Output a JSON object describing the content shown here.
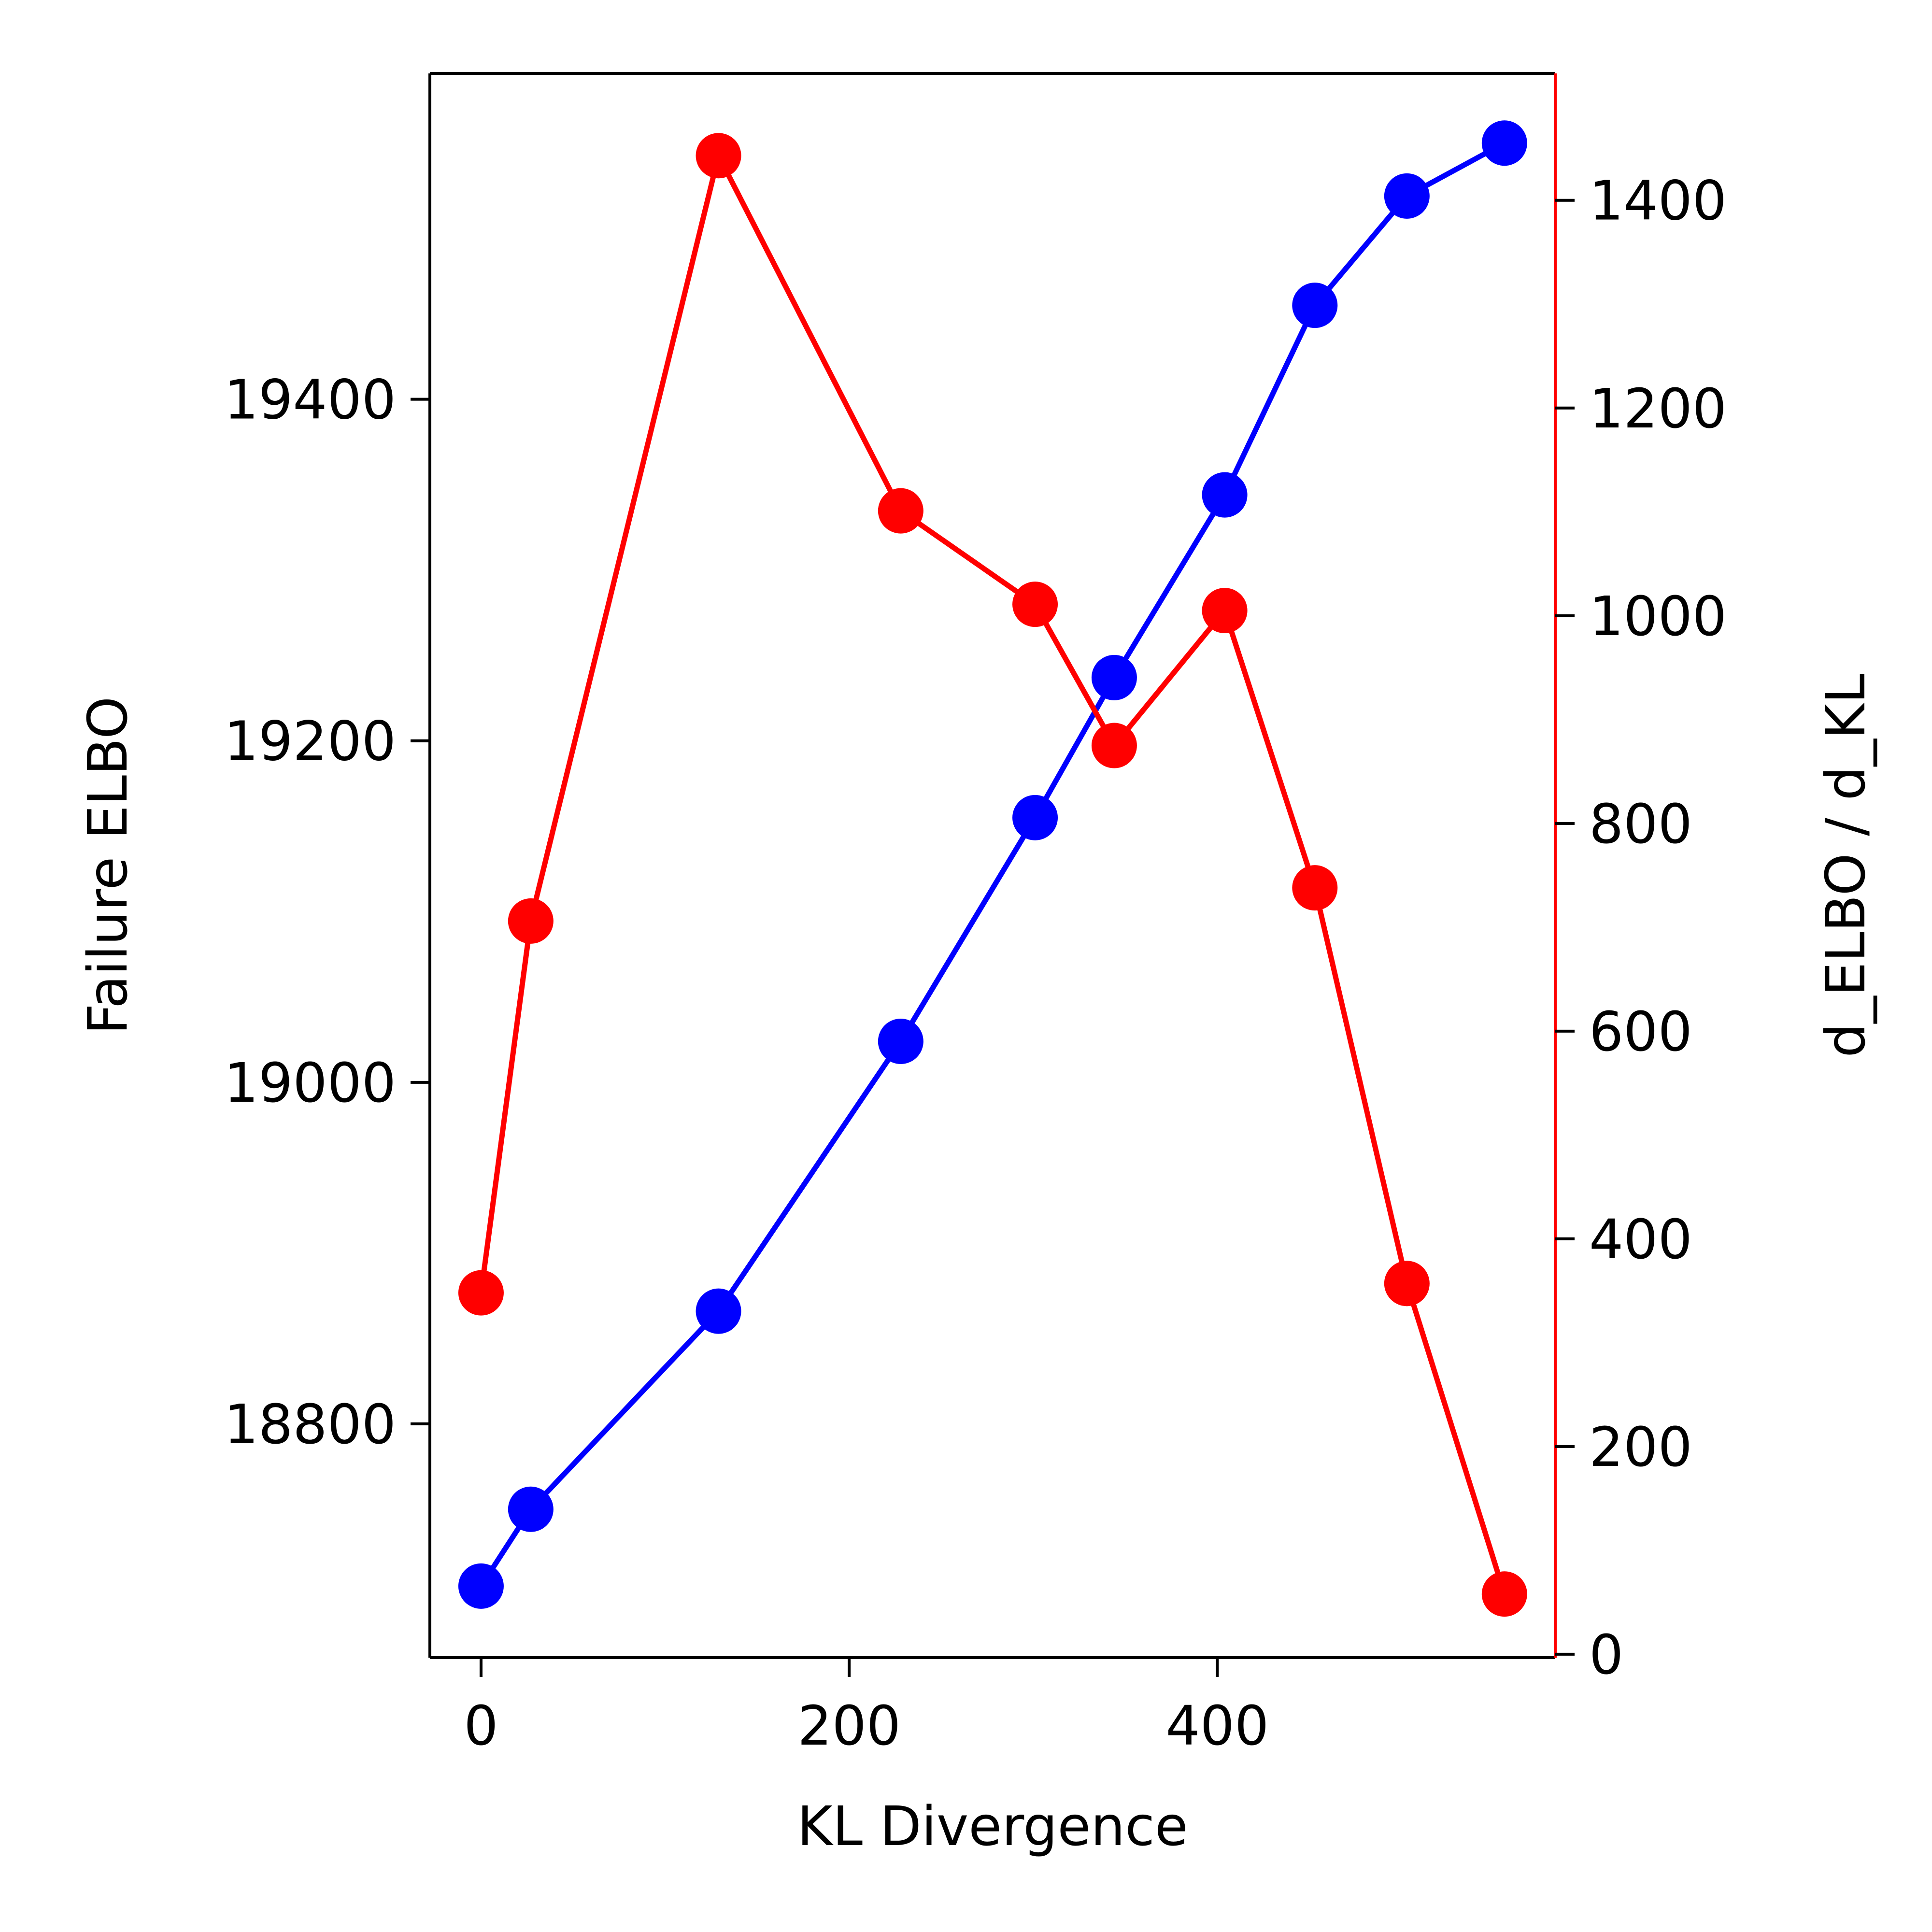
{
  "chart_data": {
    "type": "line",
    "xlabel": "KL Divergence",
    "ylabel_left": "Failure ELBO",
    "ylabel_right": "d_ELBO / d_KL",
    "xlim": [
      -27.8,
      583.6
    ],
    "ylim_left": [
      18663.1,
      19590.8
    ],
    "ylim_right": [
      -3.3,
      1522.2
    ],
    "xticks": [
      0,
      200,
      400
    ],
    "yticks_left": [
      18800,
      19000,
      19200,
      19400
    ],
    "yticks_right": [
      0,
      200,
      400,
      600,
      800,
      1000,
      1200,
      1400
    ],
    "grid": false,
    "legend": "none",
    "series": [
      {
        "axis": "left",
        "color": "#0000ff",
        "marker": "circle",
        "points": [
          [
            0,
            18705
          ],
          [
            27,
            18750
          ],
          [
            129,
            18866
          ],
          [
            228,
            19024
          ],
          [
            301,
            19155
          ],
          [
            344,
            19237
          ],
          [
            404,
            19344
          ],
          [
            453,
            19455
          ],
          [
            503,
            19519
          ],
          [
            556,
            19550
          ]
        ]
      },
      {
        "axis": "right",
        "color": "#ff0000",
        "marker": "circle",
        "points": [
          [
            0,
            348
          ],
          [
            27,
            706
          ],
          [
            129,
            1443
          ],
          [
            228,
            1101
          ],
          [
            301,
            1011
          ],
          [
            344,
            875
          ],
          [
            404,
            1005
          ],
          [
            453,
            738
          ],
          [
            503,
            357
          ],
          [
            556,
            58
          ]
        ]
      }
    ]
  }
}
